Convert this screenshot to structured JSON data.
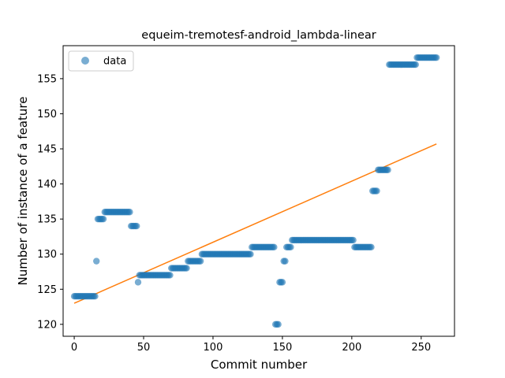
{
  "chart_data": {
    "type": "scatter",
    "title": "equeim-tremotesf-android_lambda-linear",
    "xlabel": "Commit number",
    "ylabel": "Number of instance of a feature",
    "xlim": [
      -8,
      274
    ],
    "ylim": [
      118.3,
      159.7
    ],
    "xticks": [
      0,
      50,
      100,
      150,
      200,
      250
    ],
    "yticks": [
      120,
      125,
      130,
      135,
      140,
      145,
      150,
      155
    ],
    "grid": false,
    "legend": {
      "position": "top-left",
      "entries": [
        "data"
      ]
    },
    "colors": {
      "data": "#1f77b4",
      "fit": "#ff7f0e"
    },
    "series": [
      {
        "name": "data",
        "segments": [
          [
            0,
            15,
            124
          ],
          [
            16,
            16,
            129
          ],
          [
            17,
            21,
            135
          ],
          [
            22,
            40,
            136
          ],
          [
            41,
            45,
            134
          ],
          [
            46,
            46,
            126
          ],
          [
            47,
            69,
            127
          ],
          [
            70,
            81,
            128
          ],
          [
            82,
            91,
            129
          ],
          [
            92,
            127,
            130
          ],
          [
            128,
            144,
            131
          ],
          [
            145,
            147,
            120
          ],
          [
            148,
            150,
            126
          ],
          [
            151,
            152,
            129
          ],
          [
            153,
            156,
            131
          ],
          [
            157,
            201,
            132
          ],
          [
            202,
            214,
            131
          ],
          [
            215,
            218,
            139
          ],
          [
            219,
            226,
            142
          ],
          [
            227,
            246,
            157
          ],
          [
            247,
            261,
            158
          ]
        ]
      },
      {
        "name": "",
        "type": "line",
        "x": [
          0,
          261
        ],
        "y": [
          123.0,
          145.7
        ]
      }
    ]
  }
}
